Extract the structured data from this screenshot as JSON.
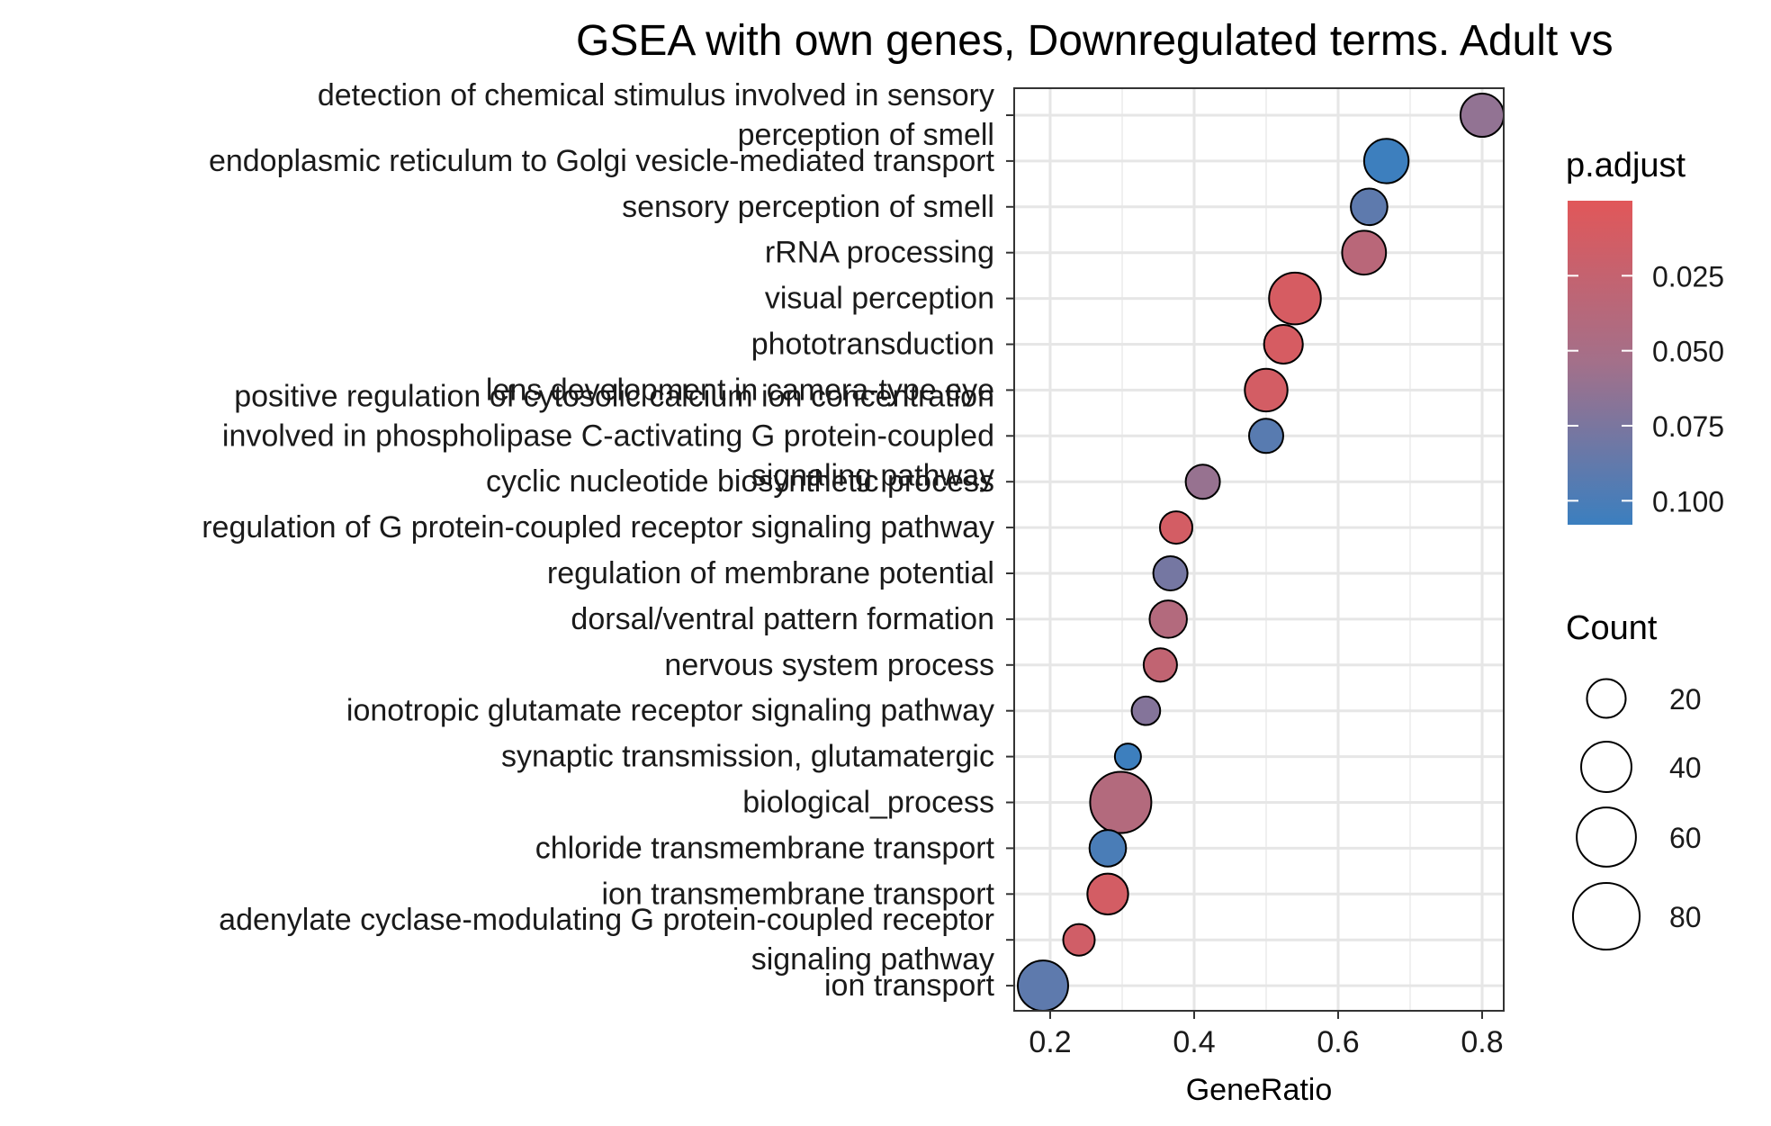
{
  "chart_data": {
    "type": "scatter",
    "title": "GSEA with own genes, Downregulated terms. Adult vs",
    "xlabel": "GeneRatio",
    "ylabel": "",
    "xlim": [
      0.15,
      0.83
    ],
    "xticks": [
      0.2,
      0.4,
      0.6,
      0.8
    ],
    "xtick_labels": [
      "0.2",
      "0.4",
      "0.6",
      "0.8"
    ],
    "grid": true,
    "legend_position": "right",
    "size_legend": {
      "title": "Count",
      "values": [
        20,
        40,
        60,
        80
      ],
      "labels": [
        "20",
        "40",
        "60",
        "80"
      ]
    },
    "color_legend": {
      "title": "p.adjust",
      "low_color": "#e15759",
      "mid_color": "#a3708a",
      "high_color": "#3b7fbf",
      "ticks": [
        0.025,
        0.05,
        0.075,
        0.1
      ],
      "tick_labels": [
        "0.025",
        "0.050",
        "0.075",
        "0.100"
      ],
      "range": [
        0.0,
        0.108
      ]
    },
    "points": [
      {
        "term": "detection of chemical stimulus involved in sensory perception of smell",
        "label_lines": [
          "detection of chemical stimulus involved in sensory",
          "perception of smell"
        ],
        "gene_ratio": 0.8,
        "count": 27,
        "p_adjust": 0.063
      },
      {
        "term": "endoplasmic reticulum to Golgi vesicle-mediated transport",
        "label_lines": [
          "endoplasmic reticulum to Golgi vesicle-mediated transport"
        ],
        "gene_ratio": 0.667,
        "count": 29,
        "p_adjust": 0.107
      },
      {
        "term": "sensory perception of smell",
        "label_lines": [
          "sensory perception of smell"
        ],
        "gene_ratio": 0.643,
        "count": 17,
        "p_adjust": 0.09
      },
      {
        "term": "rRNA processing",
        "label_lines": [
          "rRNA processing"
        ],
        "gene_ratio": 0.636,
        "count": 28,
        "p_adjust": 0.035
      },
      {
        "term": "visual perception",
        "label_lines": [
          "visual perception"
        ],
        "gene_ratio": 0.54,
        "count": 43,
        "p_adjust": 0.01
      },
      {
        "term": "phototransduction",
        "label_lines": [
          "phototransduction"
        ],
        "gene_ratio": 0.524,
        "count": 20,
        "p_adjust": 0.01
      },
      {
        "term": "lens development in camera-type eye",
        "label_lines": [
          "lens development in camera-type eye"
        ],
        "gene_ratio": 0.5,
        "count": 26,
        "p_adjust": 0.012
      },
      {
        "term": "positive regulation of cytosolic calcium ion concentration involved in phospholipase C-activating G protein-coupled signaling pathway",
        "label_lines": [
          "positive regulation of cytosolic calcium ion concentration",
          "involved in phospholipase C-activating G protein-coupled",
          "signaling pathway"
        ],
        "gene_ratio": 0.5,
        "count": 14,
        "p_adjust": 0.093
      },
      {
        "term": "cyclic nucleotide biosynthetic process",
        "label_lines": [
          "cyclic nucleotide biosynthetic process"
        ],
        "gene_ratio": 0.412,
        "count": 14,
        "p_adjust": 0.06
      },
      {
        "term": "regulation of G protein-coupled receptor signaling pathway",
        "label_lines": [
          "regulation of G protein-coupled receptor signaling pathway"
        ],
        "gene_ratio": 0.375,
        "count": 12,
        "p_adjust": 0.012
      },
      {
        "term": "regulation of membrane potential",
        "label_lines": [
          "regulation of membrane potential"
        ],
        "gene_ratio": 0.367,
        "count": 14,
        "p_adjust": 0.078
      },
      {
        "term": "dorsal/ventral pattern formation",
        "label_lines": [
          "dorsal/ventral pattern formation"
        ],
        "gene_ratio": 0.364,
        "count": 18,
        "p_adjust": 0.04
      },
      {
        "term": "nervous system process",
        "label_lines": [
          "nervous system process"
        ],
        "gene_ratio": 0.353,
        "count": 13,
        "p_adjust": 0.028
      },
      {
        "term": "ionotropic glutamate receptor signaling pathway",
        "label_lines": [
          "ionotropic glutamate receptor signaling pathway"
        ],
        "gene_ratio": 0.333,
        "count": 8,
        "p_adjust": 0.07
      },
      {
        "term": "synaptic transmission, glutamatergic",
        "label_lines": [
          "synaptic transmission, glutamatergic"
        ],
        "gene_ratio": 0.308,
        "count": 6,
        "p_adjust": 0.107
      },
      {
        "term": "biological_process",
        "label_lines": [
          "biological_process"
        ],
        "gene_ratio": 0.298,
        "count": 65,
        "p_adjust": 0.04
      },
      {
        "term": "chloride transmembrane transport",
        "label_lines": [
          "chloride transmembrane transport"
        ],
        "gene_ratio": 0.28,
        "count": 17,
        "p_adjust": 0.1
      },
      {
        "term": "ion transmembrane transport",
        "label_lines": [
          "ion transmembrane transport"
        ],
        "gene_ratio": 0.28,
        "count": 23,
        "p_adjust": 0.012
      },
      {
        "term": "adenylate cyclase-modulating G protein-coupled receptor signaling pathway",
        "label_lines": [
          "adenylate cyclase-modulating G protein-coupled receptor",
          "signaling pathway"
        ],
        "gene_ratio": 0.24,
        "count": 11,
        "p_adjust": 0.015
      },
      {
        "term": "ion transport",
        "label_lines": [
          "ion transport"
        ],
        "gene_ratio": 0.19,
        "count": 40,
        "p_adjust": 0.09
      }
    ]
  }
}
